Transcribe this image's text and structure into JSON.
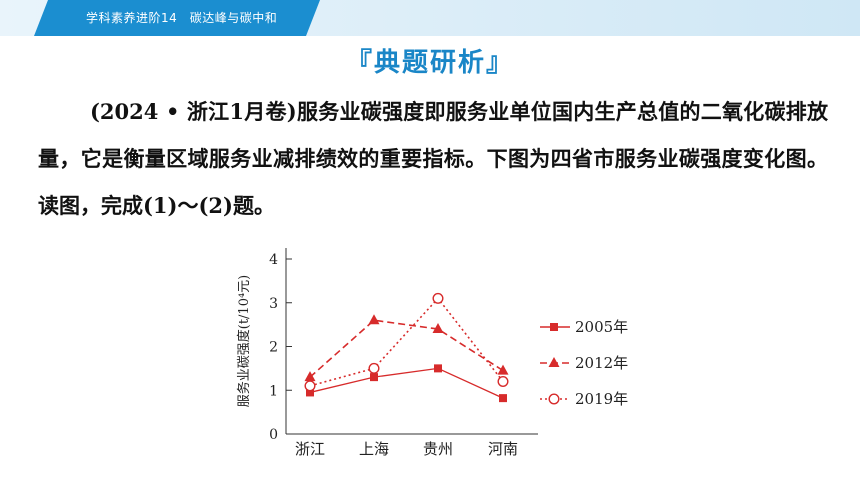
{
  "header": {
    "breadcrumb": "学科素养进阶14　碳达峰与碳中和"
  },
  "section": {
    "title": "『典题研析』"
  },
  "question": {
    "text": "(2024 • 浙江1月卷)服务业碳强度即服务业单位国内生产总值的二氧化碳排放量，它是衡量区域服务业减排绩效的重要指标。下图为四省市服务业碳强度变化图。读图，完成(1)～(2)题。"
  },
  "colors": {
    "accent": "#1a86c7",
    "series": "#d72b2b",
    "axis": "#333333"
  },
  "chart_data": {
    "type": "line",
    "ylabel": "服务业碳强度(t/10⁴元)",
    "ylim": [
      0,
      4
    ],
    "yticks": [
      "0",
      "1",
      "2",
      "3",
      "4"
    ],
    "categories": [
      "浙江",
      "上海",
      "贵州",
      "河南"
    ],
    "legend_position": "right",
    "series": [
      {
        "name": "2005年",
        "values": [
          0.95,
          1.3,
          1.5,
          0.82
        ],
        "marker": "square",
        "line": "solid"
      },
      {
        "name": "2012年",
        "values": [
          1.3,
          2.6,
          2.4,
          1.45
        ],
        "marker": "triangle",
        "line": "dashed"
      },
      {
        "name": "2019年",
        "values": [
          1.1,
          1.5,
          3.1,
          1.2
        ],
        "marker": "circle",
        "line": "dotted"
      }
    ]
  }
}
